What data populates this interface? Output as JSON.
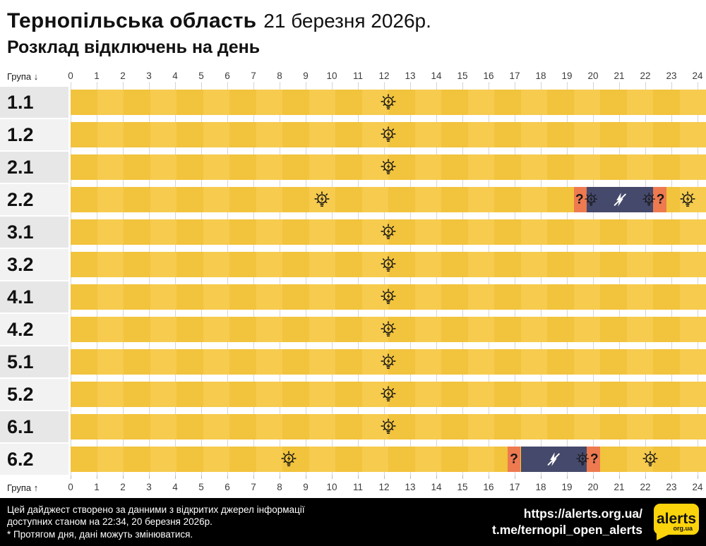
{
  "header": {
    "region": "Тернопільська область",
    "date": "21 березня 2026р.",
    "subtitle": "Розклад відключень на день"
  },
  "axis": {
    "group_top": "Група ↓",
    "group_bottom": "Група ↑",
    "hours": [
      0,
      1,
      2,
      3,
      4,
      5,
      6,
      7,
      8,
      9,
      10,
      11,
      12,
      13,
      14,
      15,
      16,
      17,
      18,
      19,
      20,
      21,
      22,
      23,
      24
    ]
  },
  "chart_data": {
    "type": "heatmap",
    "title": "Розклад відключень на день — Тернопільська область, 21 березня 2026р.",
    "x_range": [
      0,
      24
    ],
    "x_unit": "година доби",
    "states": {
      "on": {
        "meaning": "світло є",
        "color": "#F2C33C",
        "color_alt": "#F6CB4E"
      },
      "maybe": {
        "meaning": "можливе відключення",
        "color": "#EE7A50"
      },
      "off": {
        "meaning": "відключення",
        "color": "#45496B"
      }
    },
    "rows": [
      {
        "group": "1.1",
        "segments": [
          {
            "state": "on",
            "start": 0,
            "end": 24
          }
        ],
        "icons": [
          {
            "icon": "bulb",
            "hour": 12
          }
        ]
      },
      {
        "group": "1.2",
        "segments": [
          {
            "state": "on",
            "start": 0,
            "end": 24
          }
        ],
        "icons": [
          {
            "icon": "bulb",
            "hour": 12
          }
        ]
      },
      {
        "group": "2.1",
        "segments": [
          {
            "state": "on",
            "start": 0,
            "end": 24
          }
        ],
        "icons": [
          {
            "icon": "bulb",
            "hour": 12
          }
        ]
      },
      {
        "group": "2.2",
        "segments": [
          {
            "state": "on",
            "start": 0,
            "end": 19
          },
          {
            "state": "maybe",
            "start": 19,
            "end": 19.5
          },
          {
            "state": "off",
            "start": 19.5,
            "end": 22
          },
          {
            "state": "maybe",
            "start": 22,
            "end": 22.5
          },
          {
            "state": "on",
            "start": 22.5,
            "end": 24
          }
        ],
        "icons": [
          {
            "icon": "bulb",
            "hour": 9.5
          },
          {
            "icon": "question-bulb",
            "hour": 19.5
          },
          {
            "icon": "power-off",
            "hour": 20.75
          },
          {
            "icon": "bulb-question",
            "hour": 22
          },
          {
            "icon": "bulb",
            "hour": 23.3
          }
        ]
      },
      {
        "group": "3.1",
        "segments": [
          {
            "state": "on",
            "start": 0,
            "end": 24
          }
        ],
        "icons": [
          {
            "icon": "bulb",
            "hour": 12
          }
        ]
      },
      {
        "group": "3.2",
        "segments": [
          {
            "state": "on",
            "start": 0,
            "end": 24
          }
        ],
        "icons": [
          {
            "icon": "bulb",
            "hour": 12
          }
        ]
      },
      {
        "group": "4.1",
        "segments": [
          {
            "state": "on",
            "start": 0,
            "end": 24
          }
        ],
        "icons": [
          {
            "icon": "bulb",
            "hour": 12
          }
        ]
      },
      {
        "group": "4.2",
        "segments": [
          {
            "state": "on",
            "start": 0,
            "end": 24
          }
        ],
        "icons": [
          {
            "icon": "bulb",
            "hour": 12
          }
        ]
      },
      {
        "group": "5.1",
        "segments": [
          {
            "state": "on",
            "start": 0,
            "end": 24
          }
        ],
        "icons": [
          {
            "icon": "bulb",
            "hour": 12
          }
        ]
      },
      {
        "group": "5.2",
        "segments": [
          {
            "state": "on",
            "start": 0,
            "end": 24
          }
        ],
        "icons": [
          {
            "icon": "bulb",
            "hour": 12
          }
        ]
      },
      {
        "group": "6.1",
        "segments": [
          {
            "state": "on",
            "start": 0,
            "end": 24
          }
        ],
        "icons": [
          {
            "icon": "bulb",
            "hour": 12
          }
        ]
      },
      {
        "group": "6.2",
        "segments": [
          {
            "state": "on",
            "start": 0,
            "end": 16.5
          },
          {
            "state": "maybe",
            "start": 16.5,
            "end": 17
          },
          {
            "state": "off",
            "start": 17,
            "end": 19.5
          },
          {
            "state": "maybe",
            "start": 19.5,
            "end": 20
          },
          {
            "state": "on",
            "start": 20,
            "end": 24
          }
        ],
        "icons": [
          {
            "icon": "bulb",
            "hour": 8.25
          },
          {
            "icon": "question",
            "hour": 16.75
          },
          {
            "icon": "power-off",
            "hour": 18.25
          },
          {
            "icon": "bulb-question",
            "hour": 19.5
          },
          {
            "icon": "bulb",
            "hour": 21.9
          }
        ]
      }
    ]
  },
  "footer": {
    "note_line1": "Цей дайджест створено за данними з відкритих джерел інформації",
    "note_line2": "доступних станом на 22:34, 20 березня 2026р.",
    "note_line3": "* Протягом дня, дані можуть змінюватися.",
    "url": "https://alerts.org.ua/",
    "telegram": "t.me/ternopil_open_alerts",
    "logo": {
      "title": "alerts",
      "sub": "org.ua",
      "color": "#FCD40B"
    }
  }
}
